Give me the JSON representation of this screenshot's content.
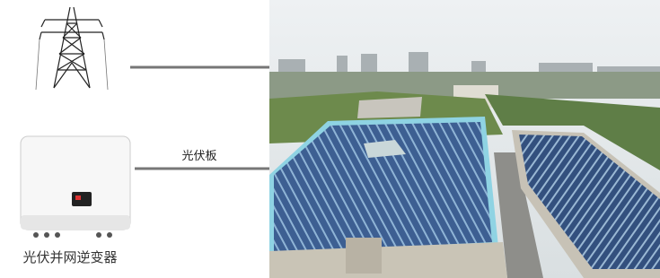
{
  "labels": {
    "panel": "光伏板",
    "inverter": "光伏并网逆变器"
  }
}
